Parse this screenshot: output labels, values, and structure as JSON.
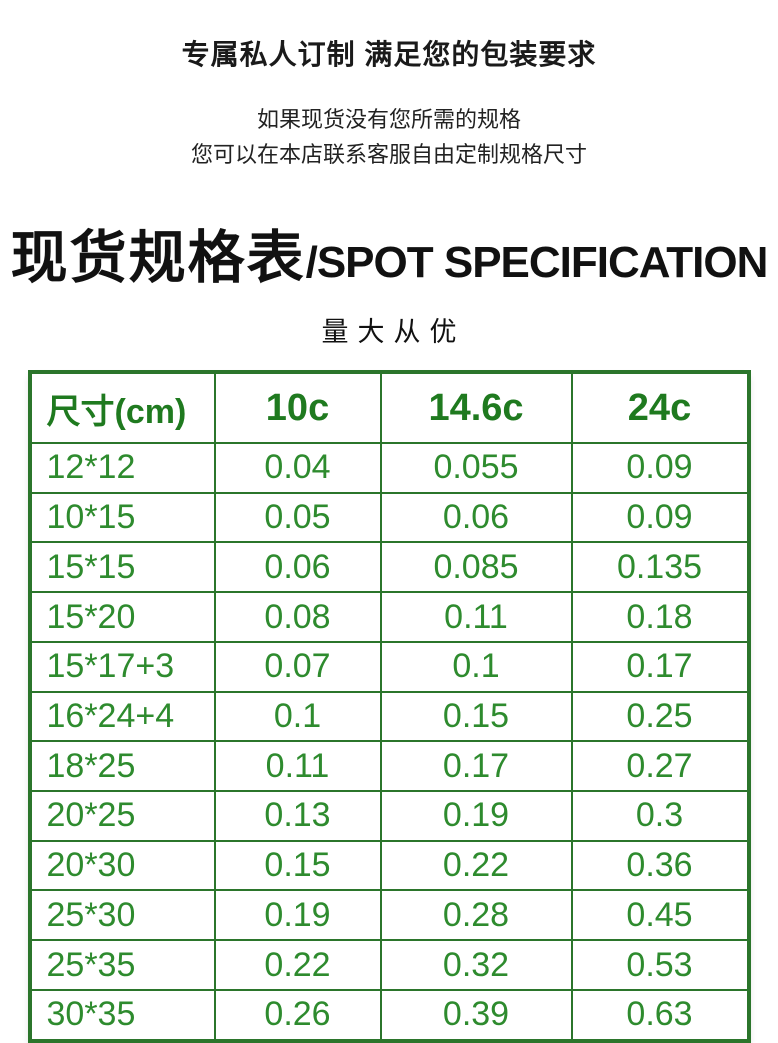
{
  "colors": {
    "table_border_green": "#2b752b",
    "table_text_green": "#2e8b2e",
    "table_header_green": "#1f7a1f",
    "ink": "#1a1a1a",
    "background": "#ffffff"
  },
  "hero": {
    "title": "专属私人订制 满足您的包装要求",
    "subtitle_line1": "如果现货没有您所需的规格",
    "subtitle_line2": "您可以在本店联系客服自由定制规格尺寸"
  },
  "section": {
    "title_cn": "现货规格表",
    "title_en": "/SPOT SPECIFICATION",
    "tagline": "量大从优"
  },
  "spec_table": {
    "columns": [
      "尺寸(cm)",
      "10c",
      "14.6c",
      "24c"
    ],
    "rows": [
      [
        "12*12",
        "0.04",
        "0.055",
        "0.09"
      ],
      [
        "10*15",
        "0.05",
        "0.06",
        "0.09"
      ],
      [
        "15*15",
        "0.06",
        "0.085",
        "0.135"
      ],
      [
        "15*20",
        "0.08",
        "0.11",
        "0.18"
      ],
      [
        "15*17+3",
        "0.07",
        "0.1",
        "0.17"
      ],
      [
        "16*24+4",
        "0.1",
        "0.15",
        "0.25"
      ],
      [
        "18*25",
        "0.11",
        "0.17",
        "0.27"
      ],
      [
        "20*25",
        "0.13",
        "0.19",
        "0.3"
      ],
      [
        "20*30",
        "0.15",
        "0.22",
        "0.36"
      ],
      [
        "25*30",
        "0.19",
        "0.28",
        "0.45"
      ],
      [
        "25*35",
        "0.22",
        "0.32",
        "0.53"
      ],
      [
        "30*35",
        "0.26",
        "0.39",
        "0.63"
      ]
    ]
  }
}
